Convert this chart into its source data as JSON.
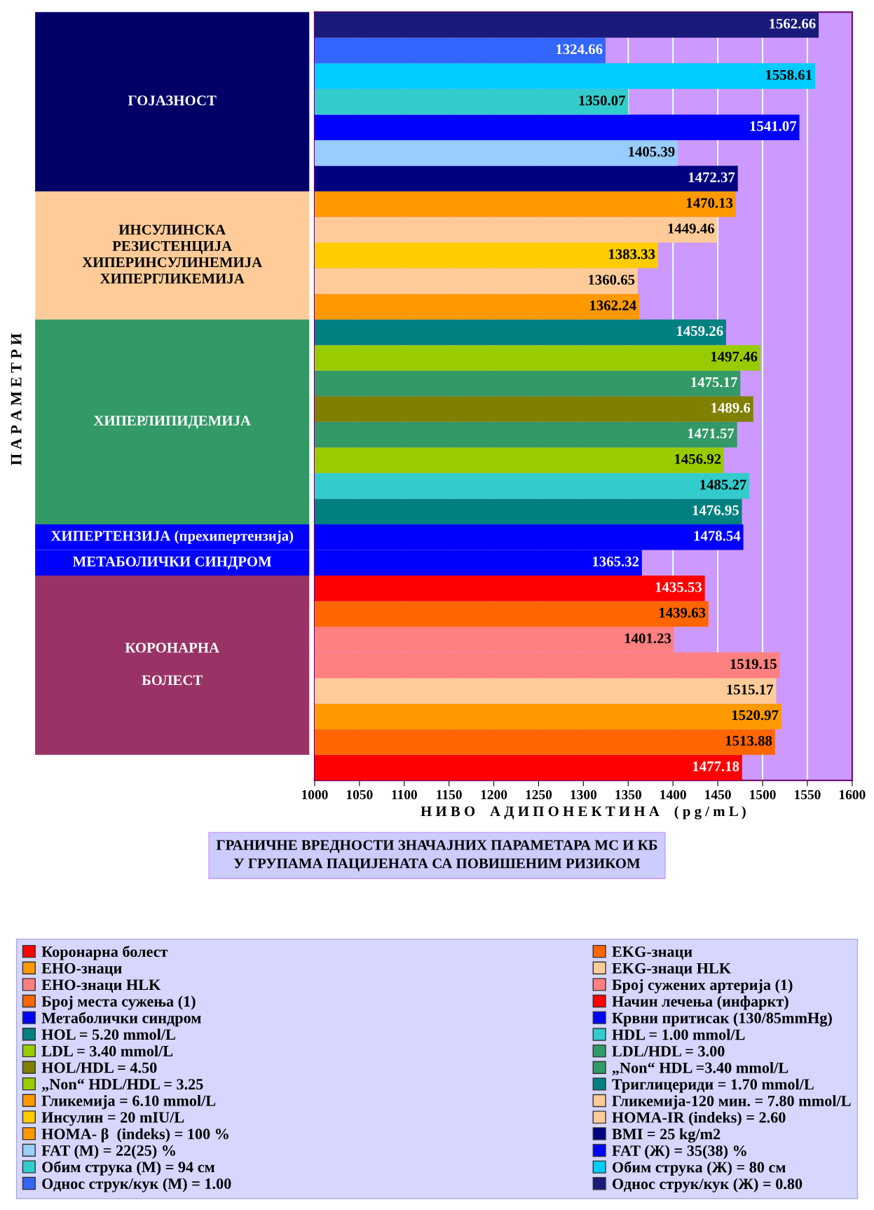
{
  "chart_data": {
    "type": "bar",
    "orientation": "horizontal",
    "title": "ГРАНИЧНЕ ВРЕДНОСТИ ЗНАЧАЈНИХ ПАРАМЕТАРА МС И КБ\nУ ГРУПАМА ПАЦИЈЕНАТА СА ПОВИШЕНИМ РИЗИКОМ",
    "xlabel": "Н И В О    А Д И П О Н Е К Т И Н А    ( p g / m L )",
    "annotations": [
      "П А Р А М Е Т Р И",
      "ГОЈАЗНОСТ",
      "ИНСУЛИНСКА\nРЕЗИСТЕНЦИЈА\nХИПЕРИНСУЛИНЕМИЈА\nХИПЕРГЛИКЕМИЈА",
      "ХИПЕРЛИПИДЕМИЈА",
      "ХИПЕРТЕНЗИЈА (прехипертензија)",
      "МЕТАБОЛИЧКИ СИНДРОМ",
      "КОРОНАРНА\n\nБОЛЕСТ"
    ],
    "categories": [
      null,
      null,
      null,
      null,
      null,
      null,
      null,
      null,
      null,
      null,
      null,
      null,
      null,
      null,
      null,
      null,
      null,
      null,
      null,
      null,
      null,
      null,
      null,
      null,
      null,
      null,
      null,
      null,
      null,
      null
    ],
    "xlim": [
      1000,
      1600
    ],
    "xticks": [
      1000,
      1050,
      1100,
      1150,
      1200,
      1250,
      1300,
      1350,
      1400,
      1450,
      1500,
      1550,
      1600
    ],
    "grid": "x",
    "legend": "bottom",
    "data_labels": true,
    "series": [
      {
        "name": "Коронарна болест",
        "color": "#ff0000",
        "values": [
          null,
          null,
          null,
          null,
          null,
          null,
          null,
          null,
          null,
          null,
          null,
          null,
          null,
          null,
          null,
          null,
          null,
          null,
          null,
          null,
          null,
          null,
          null,
          null,
          null,
          null,
          null,
          null,
          null,
          1477.18
        ]
      },
      {
        "name": "EKG-знаци",
        "color": "#ff6600",
        "values": [
          null,
          null,
          null,
          null,
          null,
          null,
          null,
          null,
          null,
          null,
          null,
          null,
          null,
          null,
          null,
          null,
          null,
          null,
          null,
          null,
          null,
          null,
          null,
          null,
          null,
          null,
          null,
          null,
          1513.88,
          null
        ]
      },
      {
        "name": "ЕНО-знаци",
        "color": "#ff9900",
        "values": [
          null,
          null,
          null,
          null,
          null,
          null,
          null,
          null,
          null,
          null,
          null,
          null,
          null,
          null,
          null,
          null,
          null,
          null,
          null,
          null,
          null,
          null,
          null,
          null,
          null,
          null,
          null,
          1520.97,
          null,
          null
        ]
      },
      {
        "name": "EKG-знаци HLK",
        "color": "#ffcc99",
        "values": [
          null,
          null,
          null,
          null,
          null,
          null,
          null,
          null,
          null,
          null,
          null,
          null,
          null,
          null,
          null,
          null,
          null,
          null,
          null,
          null,
          null,
          null,
          null,
          null,
          null,
          null,
          1515.17,
          null,
          null,
          null
        ]
      },
      {
        "name": "ЕНО-знаци HLK",
        "color": "#ff8080",
        "values": [
          null,
          null,
          null,
          null,
          null,
          null,
          null,
          null,
          null,
          null,
          null,
          null,
          null,
          null,
          null,
          null,
          null,
          null,
          null,
          null,
          null,
          null,
          null,
          null,
          null,
          1519.15,
          null,
          null,
          null,
          null
        ]
      },
      {
        "name": "Број сужених артерија (1)",
        "color": "#ff8080",
        "values": [
          null,
          null,
          null,
          null,
          null,
          null,
          null,
          null,
          null,
          null,
          null,
          null,
          null,
          null,
          null,
          null,
          null,
          null,
          null,
          null,
          null,
          null,
          null,
          null,
          1401.23,
          null,
          null,
          null,
          null,
          null
        ]
      },
      {
        "name": "Број места сужења (1)",
        "color": "#ff6600",
        "values": [
          null,
          null,
          null,
          null,
          null,
          null,
          null,
          null,
          null,
          null,
          null,
          null,
          null,
          null,
          null,
          null,
          null,
          null,
          null,
          null,
          null,
          null,
          null,
          1439.63,
          null,
          null,
          null,
          null,
          null,
          null
        ]
      },
      {
        "name": "Начин лечења (инфаркт)",
        "color": "#ff0000",
        "values": [
          null,
          null,
          null,
          null,
          null,
          null,
          null,
          null,
          null,
          null,
          null,
          null,
          null,
          null,
          null,
          null,
          null,
          null,
          null,
          null,
          null,
          null,
          1435.53,
          null,
          null,
          null,
          null,
          null,
          null,
          null
        ]
      },
      {
        "name": "Метаболички синдром",
        "color": "#0000ff",
        "values": [
          null,
          null,
          null,
          null,
          null,
          null,
          null,
          null,
          null,
          null,
          null,
          null,
          null,
          null,
          null,
          null,
          null,
          null,
          null,
          null,
          null,
          1365.32,
          null,
          null,
          null,
          null,
          null,
          null,
          null,
          null
        ]
      },
      {
        "name": "Крвни притисак (130/85mmHg)",
        "color": "#0000ff",
        "values": [
          null,
          null,
          null,
          null,
          null,
          null,
          null,
          null,
          null,
          null,
          null,
          null,
          null,
          null,
          null,
          null,
          null,
          null,
          null,
          null,
          1478.54,
          null,
          null,
          null,
          null,
          null,
          null,
          null,
          null,
          null
        ]
      },
      {
        "name": "HOL = 5.20 mmol/L",
        "color": "#008080",
        "values": [
          null,
          null,
          null,
          null,
          null,
          null,
          null,
          null,
          null,
          null,
          null,
          null,
          null,
          null,
          null,
          null,
          null,
          null,
          null,
          1476.95,
          null,
          null,
          null,
          null,
          null,
          null,
          null,
          null,
          null,
          null
        ]
      },
      {
        "name": "HDL = 1.00 mmol/L",
        "color": "#33cccc",
        "values": [
          null,
          null,
          null,
          null,
          null,
          null,
          null,
          null,
          null,
          null,
          null,
          null,
          null,
          null,
          null,
          null,
          null,
          null,
          1485.27,
          null,
          null,
          null,
          null,
          null,
          null,
          null,
          null,
          null,
          null,
          null
        ]
      },
      {
        "name": "LDL = 3.40 mmol/L",
        "color": "#99cc00",
        "values": [
          null,
          null,
          null,
          null,
          null,
          null,
          null,
          null,
          null,
          null,
          null,
          null,
          null,
          null,
          null,
          null,
          null,
          1456.92,
          null,
          null,
          null,
          null,
          null,
          null,
          null,
          null,
          null,
          null,
          null,
          null
        ]
      },
      {
        "name": "LDL/HDL = 3.00",
        "color": "#339966",
        "values": [
          null,
          null,
          null,
          null,
          null,
          null,
          null,
          null,
          null,
          null,
          null,
          null,
          null,
          null,
          null,
          null,
          1471.57,
          null,
          null,
          null,
          null,
          null,
          null,
          null,
          null,
          null,
          null,
          null,
          null,
          null
        ]
      },
      {
        "name": "HOL/HDL = 4.50",
        "color": "#808000",
        "values": [
          null,
          null,
          null,
          null,
          null,
          null,
          null,
          null,
          null,
          null,
          null,
          null,
          null,
          null,
          null,
          1489.6,
          null,
          null,
          null,
          null,
          null,
          null,
          null,
          null,
          null,
          null,
          null,
          null,
          null,
          null
        ]
      },
      {
        "name": "„Non“ HDL =3.40 mmol/L",
        "color": "#339966",
        "values": [
          null,
          null,
          null,
          null,
          null,
          null,
          null,
          null,
          null,
          null,
          null,
          null,
          null,
          null,
          1475.17,
          null,
          null,
          null,
          null,
          null,
          null,
          null,
          null,
          null,
          null,
          null,
          null,
          null,
          null,
          null
        ]
      },
      {
        "name": "„Non“ HDL/HDL = 3.25",
        "color": "#99cc00",
        "values": [
          null,
          null,
          null,
          null,
          null,
          null,
          null,
          null,
          null,
          null,
          null,
          null,
          null,
          1497.46,
          null,
          null,
          null,
          null,
          null,
          null,
          null,
          null,
          null,
          null,
          null,
          null,
          null,
          null,
          null,
          null
        ]
      },
      {
        "name": "Триглицериди = 1.70 mmol/L",
        "color": "#008080",
        "values": [
          null,
          null,
          null,
          null,
          null,
          null,
          null,
          null,
          null,
          null,
          null,
          null,
          1459.26,
          null,
          null,
          null,
          null,
          null,
          null,
          null,
          null,
          null,
          null,
          null,
          null,
          null,
          null,
          null,
          null,
          null
        ]
      },
      {
        "name": "Гликемија = 6.10 mmol/L",
        "color": "#ff9900",
        "values": [
          null,
          null,
          null,
          null,
          null,
          null,
          null,
          null,
          null,
          null,
          null,
          1362.24,
          null,
          null,
          null,
          null,
          null,
          null,
          null,
          null,
          null,
          null,
          null,
          null,
          null,
          null,
          null,
          null,
          null,
          null
        ]
      },
      {
        "name": "Гликемија-120 мин. = 7.80 mmol/L",
        "color": "#ffcc99",
        "values": [
          null,
          null,
          null,
          null,
          null,
          null,
          null,
          null,
          null,
          null,
          1360.65,
          null,
          null,
          null,
          null,
          null,
          null,
          null,
          null,
          null,
          null,
          null,
          null,
          null,
          null,
          null,
          null,
          null,
          null,
          null
        ]
      },
      {
        "name": "Инсулин = 20 mIU/L",
        "color": "#ffcc00",
        "values": [
          null,
          null,
          null,
          null,
          null,
          null,
          null,
          null,
          null,
          1383.33,
          null,
          null,
          null,
          null,
          null,
          null,
          null,
          null,
          null,
          null,
          null,
          null,
          null,
          null,
          null,
          null,
          null,
          null,
          null,
          null
        ]
      },
      {
        "name": "HOMA-IR (indeks) = 2.60",
        "color": "#ffcc99",
        "values": [
          null,
          null,
          null,
          null,
          null,
          null,
          null,
          null,
          1449.46,
          null,
          null,
          null,
          null,
          null,
          null,
          null,
          null,
          null,
          null,
          null,
          null,
          null,
          null,
          null,
          null,
          null,
          null,
          null,
          null,
          null
        ]
      },
      {
        "name": "HOMA- β  (indeks) = 100 %",
        "color": "#ff9900",
        "values": [
          null,
          null,
          null,
          null,
          null,
          null,
          null,
          1470.13,
          null,
          null,
          null,
          null,
          null,
          null,
          null,
          null,
          null,
          null,
          null,
          null,
          null,
          null,
          null,
          null,
          null,
          null,
          null,
          null,
          null,
          null
        ]
      },
      {
        "name": "BMI = 25 kg/m2",
        "color": "#000080",
        "values": [
          null,
          null,
          null,
          null,
          null,
          null,
          1472.37,
          null,
          null,
          null,
          null,
          null,
          null,
          null,
          null,
          null,
          null,
          null,
          null,
          null,
          null,
          null,
          null,
          null,
          null,
          null,
          null,
          null,
          null,
          null
        ]
      },
      {
        "name": "FAT (M) = 22(25) %",
        "color": "#99ccff",
        "values": [
          null,
          null,
          null,
          null,
          null,
          1405.39,
          null,
          null,
          null,
          null,
          null,
          null,
          null,
          null,
          null,
          null,
          null,
          null,
          null,
          null,
          null,
          null,
          null,
          null,
          null,
          null,
          null,
          null,
          null,
          null
        ]
      },
      {
        "name": "FAT (Ж) = 35(38) %",
        "color": "#0000ff",
        "values": [
          null,
          null,
          null,
          null,
          1541.07,
          null,
          null,
          null,
          null,
          null,
          null,
          null,
          null,
          null,
          null,
          null,
          null,
          null,
          null,
          null,
          null,
          null,
          null,
          null,
          null,
          null,
          null,
          null,
          null,
          null
        ]
      },
      {
        "name": "Обим струка (М) = 94 см",
        "color": "#33cccc",
        "values": [
          null,
          null,
          null,
          1350.07,
          null,
          null,
          null,
          null,
          null,
          null,
          null,
          null,
          null,
          null,
          null,
          null,
          null,
          null,
          null,
          null,
          null,
          null,
          null,
          null,
          null,
          null,
          null,
          null,
          null,
          null
        ]
      },
      {
        "name": "Обим струка (Ж) = 80 см",
        "color": "#00ccff",
        "values": [
          null,
          null,
          1558.61,
          null,
          null,
          null,
          null,
          null,
          null,
          null,
          null,
          null,
          null,
          null,
          null,
          null,
          null,
          null,
          null,
          null,
          null,
          null,
          null,
          null,
          null,
          null,
          null,
          null,
          null,
          null
        ]
      },
      {
        "name": "Однос струк/кук (М) = 1.00",
        "color": "#3366ff",
        "values": [
          null,
          1324.66,
          null,
          null,
          null,
          null,
          null,
          null,
          null,
          null,
          null,
          null,
          null,
          null,
          null,
          null,
          null,
          null,
          null,
          null,
          null,
          null,
          null,
          null,
          null,
          null,
          null,
          null,
          null,
          null
        ]
      },
      {
        "name": "Однос струк/кук (Ж) = 0.80",
        "color": "#1a1a7a",
        "values": [
          1562.66,
          null,
          null,
          null,
          null,
          null,
          null,
          null,
          null,
          null,
          null,
          null,
          null,
          null,
          null,
          null,
          null,
          null,
          null,
          null,
          null,
          null,
          null,
          null,
          null,
          null,
          null,
          null,
          null,
          null
        ]
      }
    ]
  }
}
